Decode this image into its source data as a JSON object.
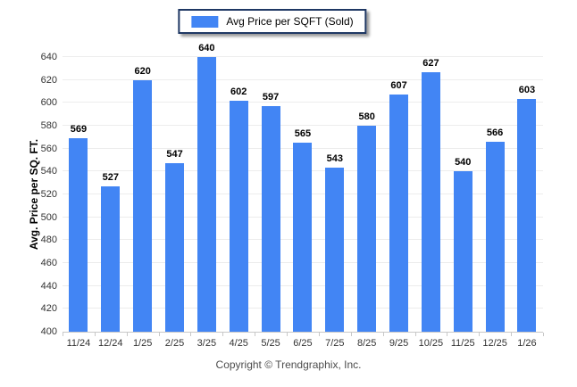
{
  "legend": {
    "label": "Avg Price per SQFT (Sold)"
  },
  "y_axis": {
    "title": "Avg. Price per SQ. FT."
  },
  "footer": {
    "copyright": "Copyright © Trendgraphix, Inc."
  },
  "colors": {
    "bar": "#4285F4",
    "legend_border": "#1F3864",
    "gridline": "#ececec",
    "axis_line": "#c8c8c8",
    "tick_label": "#333333",
    "value_label": "#000000",
    "copyright": "#4d4d4d"
  },
  "chart_data": {
    "type": "bar",
    "title": "Avg Price per SQFT (Sold)",
    "categories": [
      "11/24",
      "12/24",
      "1/25",
      "2/25",
      "3/25",
      "4/25",
      "5/25",
      "6/25",
      "7/25",
      "8/25",
      "9/25",
      "10/25",
      "11/25",
      "12/25",
      "1/26"
    ],
    "values": [
      569,
      527,
      620,
      547,
      640,
      602,
      597,
      565,
      543,
      580,
      607,
      627,
      540,
      566,
      603
    ],
    "xlabel": "",
    "ylabel": "Avg. Price per SQ. FT.",
    "ylim": [
      400,
      640
    ],
    "y_ticks": [
      400,
      420,
      440,
      460,
      480,
      500,
      520,
      540,
      560,
      580,
      600,
      620,
      640
    ],
    "grid": true,
    "legend_position": "top"
  }
}
